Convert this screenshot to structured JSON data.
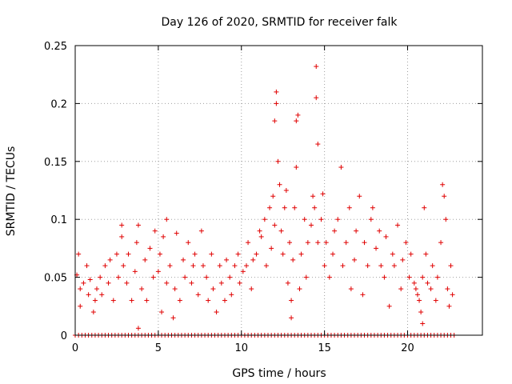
{
  "chart_data": {
    "type": "scatter",
    "title": "Day 126 of 2020, SRMTID for receiver falk",
    "xlabel": "GPS time / hours",
    "ylabel": "SRMTID / TECUs",
    "xlim": [
      0,
      24.5
    ],
    "ylim": [
      0,
      0.25
    ],
    "x_ticks": [
      0,
      5,
      10,
      15,
      20
    ],
    "x_tick_labels": [
      "0",
      "5",
      "10",
      "15",
      "20"
    ],
    "y_ticks": [
      0,
      0.05,
      0.1,
      0.15,
      0.2,
      0.25
    ],
    "y_tick_labels": [
      "0",
      "0.05",
      "0.1",
      "0.15",
      "0.2",
      "0.25"
    ],
    "grid": true,
    "marker": "+",
    "series": [
      {
        "name": "SRMTID",
        "color": "#e00000",
        "x": [
          0.1,
          0.2,
          0.3,
          0.3,
          0.5,
          0.7,
          0.8,
          0.9,
          1.1,
          1.2,
          1.3,
          1.5,
          1.6,
          1.8,
          2.0,
          2.1,
          2.3,
          2.5,
          2.6,
          2.8,
          2.8,
          2.9,
          3.1,
          3.2,
          3.4,
          3.6,
          3.7,
          3.8,
          3.8,
          4.0,
          4.2,
          4.3,
          4.5,
          4.7,
          4.8,
          5.0,
          5.1,
          5.2,
          5.3,
          5.5,
          5.5,
          5.7,
          5.9,
          6.0,
          6.1,
          6.3,
          6.5,
          6.6,
          6.8,
          7.0,
          7.1,
          7.2,
          7.4,
          7.6,
          7.7,
          7.9,
          8.0,
          8.2,
          8.3,
          8.5,
          8.7,
          8.8,
          9.0,
          9.1,
          9.3,
          9.4,
          9.6,
          9.8,
          9.9,
          10.1,
          10.3,
          10.4,
          10.6,
          10.7,
          10.9,
          11.1,
          11.2,
          11.4,
          11.5,
          11.7,
          11.8,
          11.9,
          12.0,
          12.0,
          12.1,
          12.1,
          12.2,
          12.3,
          12.4,
          12.5,
          12.6,
          12.7,
          12.8,
          12.9,
          13.0,
          13.0,
          13.1,
          13.2,
          13.3,
          13.3,
          13.4,
          13.5,
          13.6,
          13.8,
          13.9,
          14.0,
          14.2,
          14.3,
          14.4,
          14.5,
          14.5,
          14.6,
          14.6,
          14.8,
          14.9,
          15.0,
          15.1,
          15.3,
          15.5,
          15.6,
          15.8,
          16.0,
          16.1,
          16.3,
          16.5,
          16.6,
          16.8,
          16.9,
          17.1,
          17.3,
          17.4,
          17.6,
          17.8,
          17.9,
          18.1,
          18.3,
          18.4,
          18.6,
          18.7,
          18.9,
          19.1,
          19.2,
          19.4,
          19.6,
          19.7,
          19.9,
          20.1,
          20.2,
          20.4,
          20.5,
          20.6,
          20.7,
          20.8,
          20.9,
          20.9,
          21.0,
          21.1,
          21.2,
          21.4,
          21.5,
          21.7,
          21.8,
          22.0,
          22.1,
          22.2,
          22.3,
          22.4,
          22.5,
          22.6,
          22.7
        ],
        "y": [
          0.052,
          0.07,
          0.04,
          0.025,
          0.045,
          0.06,
          0.035,
          0.048,
          0.02,
          0.03,
          0.04,
          0.05,
          0.035,
          0.06,
          0.045,
          0.065,
          0.03,
          0.07,
          0.05,
          0.085,
          0.095,
          0.06,
          0.045,
          0.07,
          0.03,
          0.055,
          0.08,
          0.095,
          0.006,
          0.04,
          0.065,
          0.03,
          0.075,
          0.05,
          0.09,
          0.055,
          0.07,
          0.02,
          0.085,
          0.045,
          0.1,
          0.06,
          0.015,
          0.04,
          0.088,
          0.03,
          0.065,
          0.05,
          0.08,
          0.045,
          0.06,
          0.07,
          0.035,
          0.09,
          0.06,
          0.05,
          0.03,
          0.07,
          0.04,
          0.02,
          0.06,
          0.045,
          0.03,
          0.065,
          0.05,
          0.035,
          0.06,
          0.07,
          0.045,
          0.055,
          0.06,
          0.08,
          0.04,
          0.065,
          0.07,
          0.09,
          0.085,
          0.1,
          0.06,
          0.11,
          0.075,
          0.12,
          0.095,
          0.185,
          0.2,
          0.21,
          0.15,
          0.13,
          0.09,
          0.07,
          0.11,
          0.125,
          0.045,
          0.08,
          0.03,
          0.015,
          0.065,
          0.11,
          0.145,
          0.185,
          0.19,
          0.04,
          0.07,
          0.1,
          0.05,
          0.08,
          0.095,
          0.12,
          0.11,
          0.232,
          0.205,
          0.165,
          0.08,
          0.1,
          0.122,
          0.06,
          0.08,
          0.05,
          0.07,
          0.09,
          0.1,
          0.145,
          0.06,
          0.08,
          0.11,
          0.04,
          0.065,
          0.09,
          0.12,
          0.035,
          0.08,
          0.06,
          0.1,
          0.11,
          0.075,
          0.09,
          0.06,
          0.05,
          0.085,
          0.025,
          0.07,
          0.06,
          0.095,
          0.04,
          0.065,
          0.08,
          0.05,
          0.07,
          0.045,
          0.04,
          0.035,
          0.03,
          0.02,
          0.01,
          0.05,
          0.11,
          0.07,
          0.045,
          0.04,
          0.06,
          0.03,
          0.05,
          0.08,
          0.13,
          0.12,
          0.1,
          0.04,
          0.025,
          0.06,
          0.035
        ],
        "zeros_x": [
          0.0,
          0.2,
          0.4,
          0.6,
          0.8,
          1.0,
          1.2,
          1.4,
          1.6,
          1.8,
          2.0,
          2.2,
          2.4,
          2.6,
          2.8,
          3.0,
          3.2,
          3.4,
          3.6,
          3.8,
          4.0,
          4.2,
          4.4,
          4.6,
          4.8,
          5.0,
          5.2,
          5.4,
          5.6,
          5.8,
          6.0,
          6.2,
          6.4,
          6.6,
          6.8,
          7.0,
          7.2,
          7.4,
          7.6,
          7.8,
          8.0,
          8.2,
          8.4,
          8.6,
          8.8,
          9.0,
          9.2,
          9.4,
          9.6,
          9.8,
          10.0,
          10.2,
          10.4,
          10.6,
          10.8,
          11.0,
          11.2,
          11.4,
          11.6,
          11.8,
          12.0,
          12.2,
          12.4,
          12.6,
          12.8,
          13.0,
          13.2,
          13.4,
          13.6,
          13.8,
          14.0,
          14.2,
          14.4,
          14.6,
          14.8,
          15.0,
          15.2,
          15.4,
          15.6,
          15.8,
          16.0,
          16.2,
          16.4,
          16.6,
          16.8,
          17.0,
          17.2,
          17.4,
          17.6,
          17.8,
          18.0,
          18.2,
          18.4,
          18.6,
          18.8,
          19.0,
          19.2,
          19.4,
          19.6,
          19.8,
          20.0,
          20.2,
          20.4,
          20.6,
          20.8,
          21.0,
          21.2,
          21.4,
          21.6,
          21.8,
          22.0,
          22.2,
          22.4,
          22.6,
          22.8
        ]
      }
    ]
  }
}
